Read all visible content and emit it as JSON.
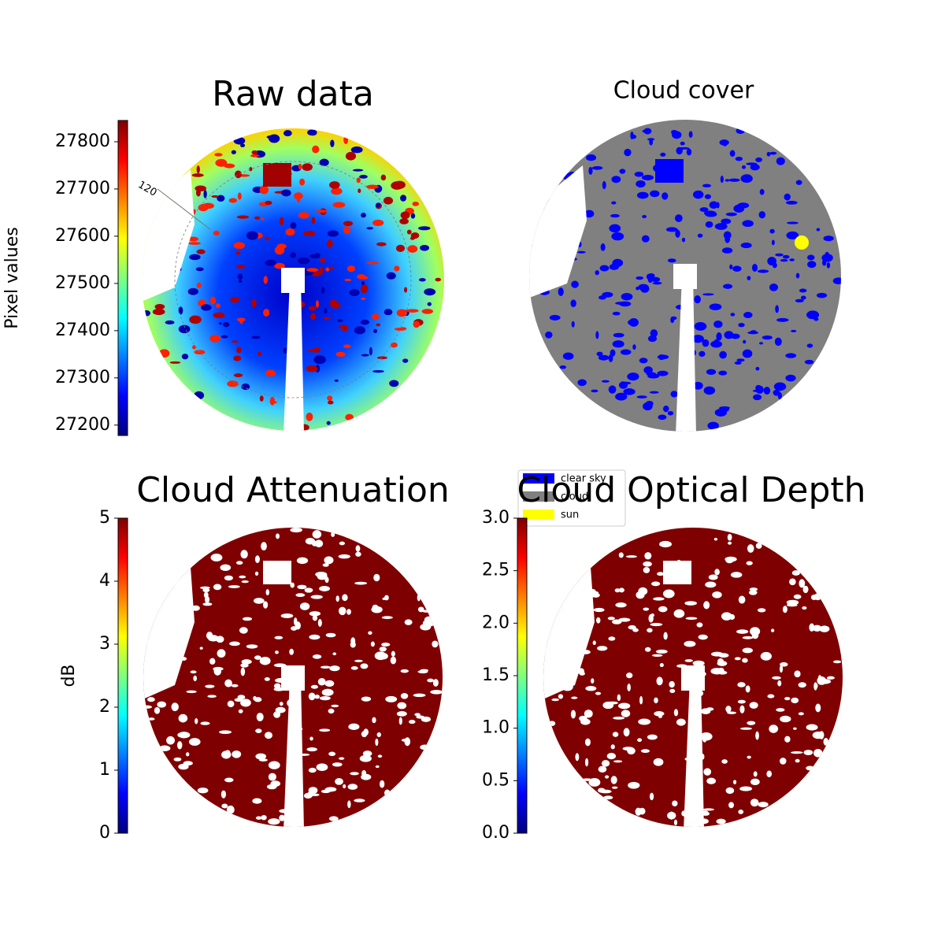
{
  "chart_data": [
    {
      "type": "image",
      "title": "Raw data",
      "colorbar": {
        "label": "Pixel values",
        "lim": [
          27178,
          27845
        ],
        "ticks": [
          27200,
          27300,
          27400,
          27500,
          27600,
          27700,
          27800
        ]
      },
      "annotations": [
        "120"
      ]
    },
    {
      "type": "image",
      "title": "Cloud cover",
      "series": [
        {
          "name": "clear sky",
          "color": "#0000ff"
        },
        {
          "name": "cloud",
          "color": "#808080"
        },
        {
          "name": "sun",
          "color": "#ffff00"
        }
      ]
    },
    {
      "type": "image",
      "title": "Cloud Attenuation",
      "colorbar": {
        "label": "dB",
        "lim": [
          0,
          5
        ],
        "ticks": [
          0,
          1,
          2,
          3,
          4,
          5
        ]
      }
    },
    {
      "type": "image",
      "title": "Cloud Optical Depth",
      "colorbar": {
        "lim": [
          0,
          3
        ],
        "ticks": [
          {
            "value": 0,
            "label": "0.0"
          },
          {
            "value": 0.5,
            "label": "0.5"
          },
          {
            "value": 1,
            "label": "1.0"
          },
          {
            "value": 1.5,
            "label": "1.5"
          },
          {
            "value": 2,
            "label": "2.0"
          },
          {
            "value": 2.5,
            "label": "2.5"
          },
          {
            "value": 3,
            "label": "3.0"
          }
        ]
      }
    }
  ]
}
